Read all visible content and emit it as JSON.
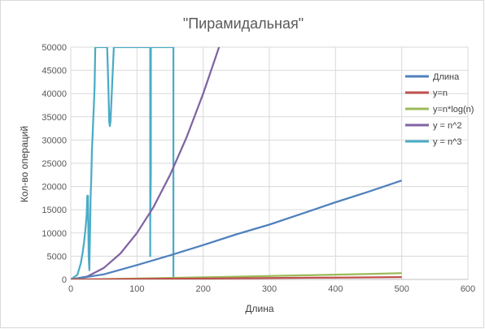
{
  "chart_data": {
    "type": "line",
    "title": "\"Пирамидальная\"",
    "xlabel": "Длина",
    "ylabel": "Кол-во операций",
    "xlim": [
      0,
      600
    ],
    "ylim": [
      0,
      50000
    ],
    "xticks": [
      0,
      100,
      200,
      300,
      400,
      500,
      600
    ],
    "yticks": [
      0,
      5000,
      10000,
      15000,
      20000,
      25000,
      30000,
      35000,
      40000,
      45000,
      50000
    ],
    "grid": true,
    "legend_position": "right",
    "series": [
      {
        "name": "Длина",
        "color": "#4f81bd",
        "x": [
          0,
          50,
          100,
          150,
          200,
          250,
          300,
          350,
          400,
          450,
          500
        ],
        "y": [
          0,
          1100,
          3100,
          5200,
          7400,
          9700,
          11800,
          14200,
          16600,
          18900,
          21300
        ]
      },
      {
        "name": "y=n",
        "color": "#c0504d",
        "x": [
          0,
          100,
          200,
          300,
          400,
          500
        ],
        "y": [
          0,
          100,
          200,
          300,
          400,
          500
        ]
      },
      {
        "name": "y=n*log(n)",
        "color": "#9bbb59",
        "x": [
          0,
          50,
          100,
          150,
          200,
          250,
          300,
          350,
          400,
          450,
          500
        ],
        "y": [
          0,
          85,
          200,
          330,
          460,
          600,
          740,
          890,
          1040,
          1190,
          1345
        ]
      },
      {
        "name": "y = n^2",
        "color": "#8064a2",
        "x": [
          0,
          25,
          50,
          75,
          100,
          125,
          150,
          175,
          200,
          224
        ],
        "y": [
          0,
          625,
          2500,
          5600,
          10000,
          15600,
          22500,
          30600,
          40000,
          50000
        ]
      },
      {
        "name": "y = n^3",
        "color": "#4bacc6",
        "x": [
          0,
          10,
          15,
          18,
          20,
          22,
          24,
          25,
          26,
          27,
          28,
          29,
          30,
          31,
          32,
          33,
          34,
          35,
          36,
          37,
          55,
          57,
          58,
          59,
          60,
          65,
          120,
          120,
          120,
          120,
          121,
          121,
          121,
          155,
          155,
          155,
          155
        ],
        "y": [
          0,
          1000,
          3400,
          5800,
          8000,
          10600,
          13800,
          18000,
          18000,
          5000,
          2000,
          10000,
          18000,
          22000,
          28000,
          31000,
          35000,
          38000,
          42000,
          50000,
          50000,
          40000,
          34000,
          33000,
          34000,
          50000,
          50000,
          5000,
          13000,
          12000,
          23000,
          30000,
          50000,
          50000,
          0,
          0,
          50000
        ]
      }
    ]
  }
}
